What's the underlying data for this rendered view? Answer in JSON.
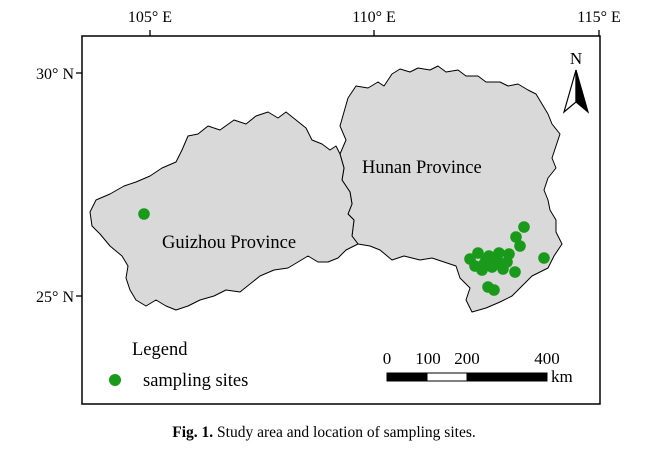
{
  "axes": {
    "longitude_ticks": [
      "105° E",
      "110° E",
      "115° E"
    ],
    "latitude_ticks": [
      "30° N",
      "25° N"
    ]
  },
  "provinces": [
    {
      "name": "Guizhou Province"
    },
    {
      "name": "Hunan Province"
    }
  ],
  "north_arrow": {
    "label": "N"
  },
  "legend": {
    "title": "Legend",
    "items": [
      {
        "label": "sampling sites",
        "color": "#1a9a1a"
      }
    ]
  },
  "scale_bar": {
    "labels": [
      "0",
      "100",
      "200",
      "400"
    ],
    "unit": "km"
  },
  "colors": {
    "province_fill": "#d9d9d9",
    "province_stroke": "#000000",
    "site": "#1a9a1a"
  },
  "sampling_sites_count": 22,
  "caption": {
    "label": "Fig. 1.",
    "text": "Study area and location of sampling sites."
  }
}
